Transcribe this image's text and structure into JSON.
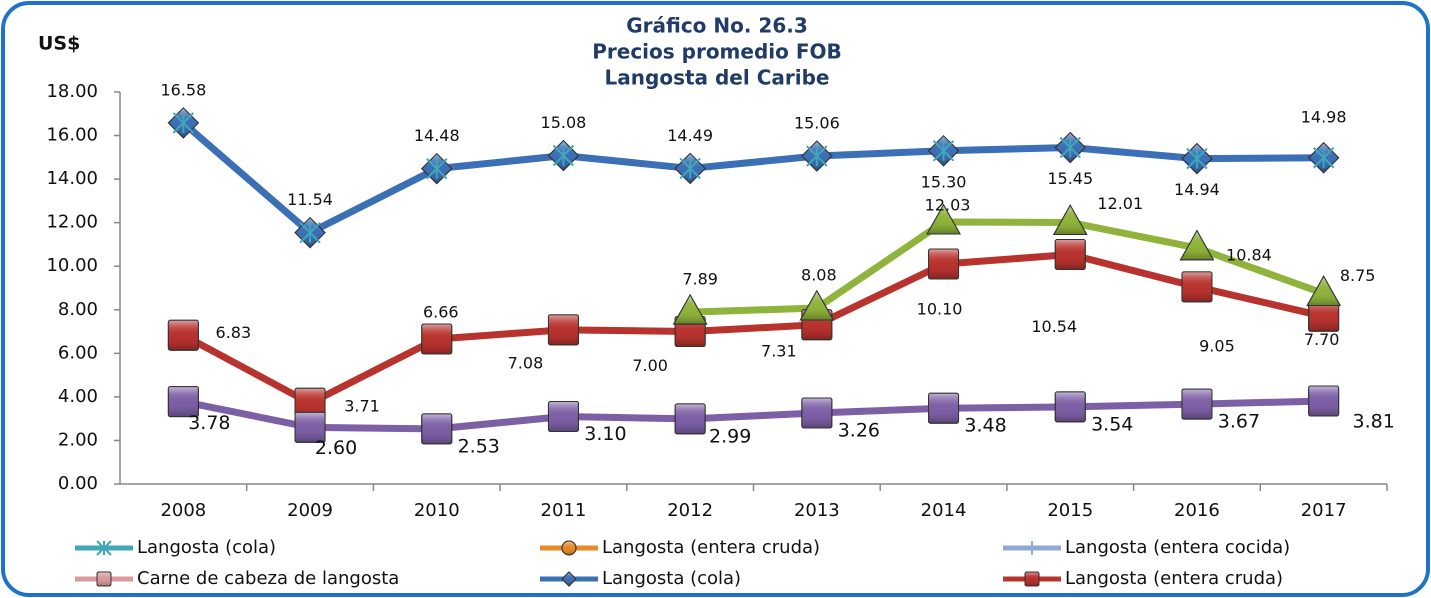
{
  "chart_data": {
    "type": "line",
    "title": [
      "Gráfico No. 26.3",
      "Precios promedio FOB",
      "Langosta del Caribe"
    ],
    "y_label": "US$",
    "categories": [
      "2008",
      "2009",
      "2010",
      "2011",
      "2012",
      "2013",
      "2014",
      "2015",
      "2016",
      "2017"
    ],
    "ylim": [
      0,
      18
    ],
    "yticks": [
      {
        "value": 0,
        "label": "0.00"
      },
      {
        "value": 2,
        "label": "2.00"
      },
      {
        "value": 4,
        "label": "4.00"
      },
      {
        "value": 6,
        "label": "6.00"
      },
      {
        "value": 8,
        "label": "8.00"
      },
      {
        "value": 10,
        "label": "10.00"
      },
      {
        "value": 12,
        "label": "12.00"
      },
      {
        "value": 14,
        "label": "14.00"
      },
      {
        "value": 16,
        "label": "16.00"
      },
      {
        "value": 18,
        "label": "18.00"
      }
    ],
    "series": [
      {
        "name": "Langosta (cola)",
        "color": "#3b6fb6",
        "marker": "diamond",
        "values": [
          16.58,
          11.54,
          14.48,
          15.08,
          14.49,
          15.06,
          15.3,
          15.45,
          14.94,
          14.98
        ],
        "value_labels": [
          "16.58",
          "11.54",
          "14.48",
          "15.08",
          "14.49",
          "15.06",
          "15.30",
          "15.45",
          "14.94",
          "14.98"
        ]
      },
      {
        "name": "Langosta (entera cruda)",
        "color": "#b8332e",
        "marker": "square",
        "values": [
          6.83,
          3.71,
          6.66,
          7.08,
          7.0,
          7.31,
          10.1,
          10.54,
          9.05,
          7.7
        ],
        "value_labels": [
          "6.83",
          "3.71",
          "6.66",
          "7.08",
          "7.00",
          "7.31",
          "10.10",
          "10.54",
          "9.05",
          "7.70"
        ]
      },
      {
        "color": "#8fb33b",
        "marker": "triangle",
        "values": [
          null,
          null,
          null,
          null,
          7.89,
          8.08,
          12.03,
          12.01,
          10.84,
          8.75
        ],
        "value_labels": [
          null,
          null,
          null,
          null,
          "7.89",
          "8.08",
          "12.03",
          "12.01",
          "10.84",
          "8.75"
        ]
      },
      {
        "color": "#7d5fa6",
        "marker": "square",
        "values": [
          3.78,
          2.6,
          2.53,
          3.1,
          2.99,
          3.26,
          3.48,
          3.54,
          3.67,
          3.81
        ],
        "value_labels": [
          "3.78",
          "2.60",
          "2.53",
          "3.10",
          "2.99",
          "3.26",
          "3.48",
          "3.54",
          "3.67",
          "3.81"
        ]
      }
    ],
    "legend": [
      {
        "label": "Langosta (cola)",
        "color": "#3fa7b8",
        "marker": "cross"
      },
      {
        "label": "Langosta (entera cruda)",
        "color": "#e88a2a",
        "marker": "circle"
      },
      {
        "label": "Langosta (entera cocida)",
        "color": "#8fa8d8",
        "marker": "plus"
      },
      {
        "label": "Carne de cabeza de langosta",
        "color": "#d89a9a",
        "marker": "square"
      },
      {
        "label": "Langosta (cola)",
        "color": "#3b6fb6",
        "marker": "diamond"
      },
      {
        "label": "Langosta (entera cruda)",
        "color": "#b8332e",
        "marker": "square"
      }
    ]
  }
}
